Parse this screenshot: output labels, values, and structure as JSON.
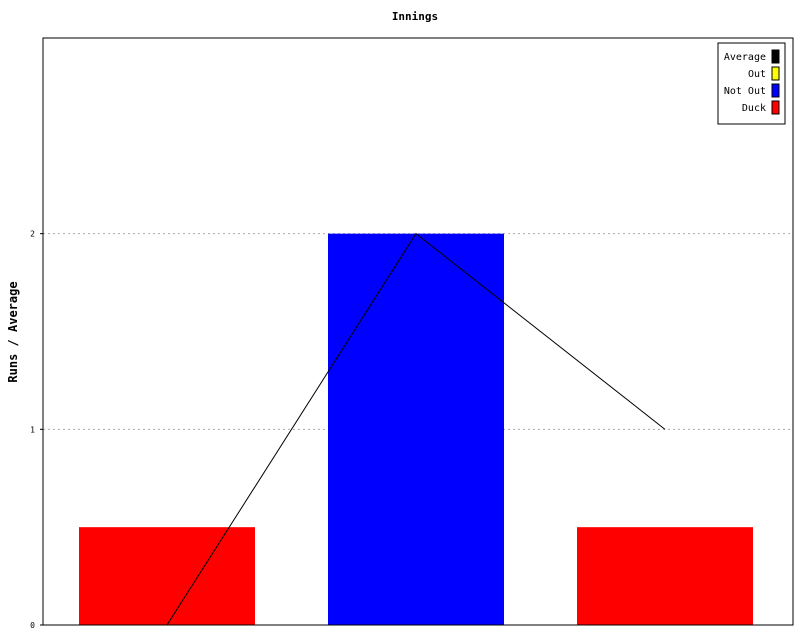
{
  "chart_data": {
    "type": "bar",
    "title": "Innings",
    "xlabel": "",
    "ylabel": "Runs / Average",
    "ylim": [
      0,
      3
    ],
    "yticks": [
      0,
      1,
      2
    ],
    "grid": true,
    "legend_placement": "top-right",
    "legend": [
      {
        "name": "Average",
        "color": "#000000"
      },
      {
        "name": "Out",
        "color": "#ffff00"
      },
      {
        "name": "Not Out",
        "color": "#0000ff"
      },
      {
        "name": "Duck",
        "color": "#ff0000"
      }
    ],
    "bars": [
      {
        "index": 1,
        "value": 0.5,
        "status": "Duck",
        "color": "#ff0000"
      },
      {
        "index": 2,
        "value": 2,
        "status": "Not Out",
        "color": "#0000ff"
      },
      {
        "index": 3,
        "value": 0.5,
        "status": "Duck",
        "color": "#ff0000"
      }
    ],
    "average_line": {
      "name": "Average",
      "color": "#000000",
      "values": [
        0,
        2,
        1
      ]
    }
  }
}
